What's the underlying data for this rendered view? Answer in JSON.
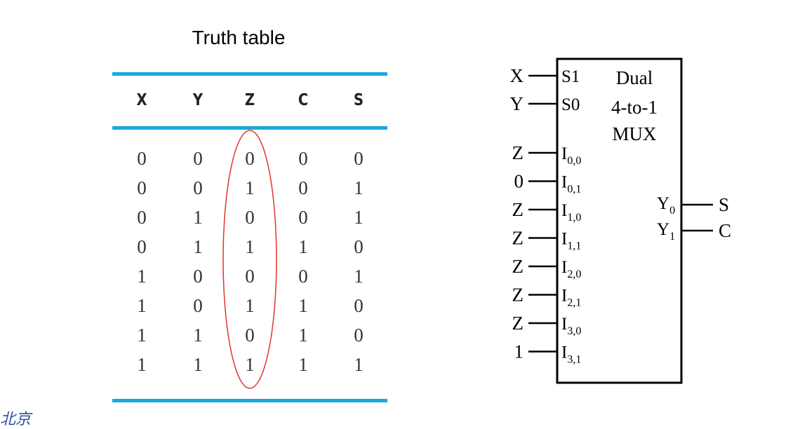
{
  "truth_table": {
    "title": "Truth table",
    "columns": [
      "X",
      "Y",
      "Z",
      "C",
      "S"
    ],
    "rows": [
      [
        "0",
        "0",
        "0",
        "0",
        "0"
      ],
      [
        "0",
        "0",
        "1",
        "0",
        "1"
      ],
      [
        "0",
        "1",
        "0",
        "0",
        "1"
      ],
      [
        "0",
        "1",
        "1",
        "1",
        "0"
      ],
      [
        "1",
        "0",
        "0",
        "0",
        "1"
      ],
      [
        "1",
        "0",
        "1",
        "1",
        "0"
      ],
      [
        "1",
        "1",
        "0",
        "1",
        "0"
      ],
      [
        "1",
        "1",
        "1",
        "1",
        "1"
      ]
    ],
    "highlight_color": "#e0352b",
    "rule_color": "#1aa8e0"
  },
  "mux": {
    "title_lines": [
      "Dual",
      "4-to-1",
      "MUX"
    ],
    "select_inputs": [
      {
        "signal": "X",
        "pin": "S1"
      },
      {
        "signal": "Y",
        "pin": "S0"
      }
    ],
    "data_inputs": [
      {
        "signal": "Z",
        "pin": "I",
        "sub": "0,0"
      },
      {
        "signal": "0",
        "pin": "I",
        "sub": "0,1"
      },
      {
        "signal": "Z",
        "pin": "I",
        "sub": "1,0"
      },
      {
        "signal": "Z",
        "pin": "I",
        "sub": "1,1"
      },
      {
        "signal": "Z",
        "pin": "I",
        "sub": "2,0"
      },
      {
        "signal": "Z",
        "pin": "I",
        "sub": "2,1"
      },
      {
        "signal": "Z",
        "pin": "I",
        "sub": "3,0"
      },
      {
        "signal": "1",
        "pin": "I",
        "sub": "3,1"
      }
    ],
    "outputs": [
      {
        "pin": "Y",
        "sub": "0",
        "signal": "S"
      },
      {
        "pin": "Y",
        "sub": "1",
        "signal": "C"
      }
    ]
  },
  "logo": {
    "text": "北京"
  }
}
